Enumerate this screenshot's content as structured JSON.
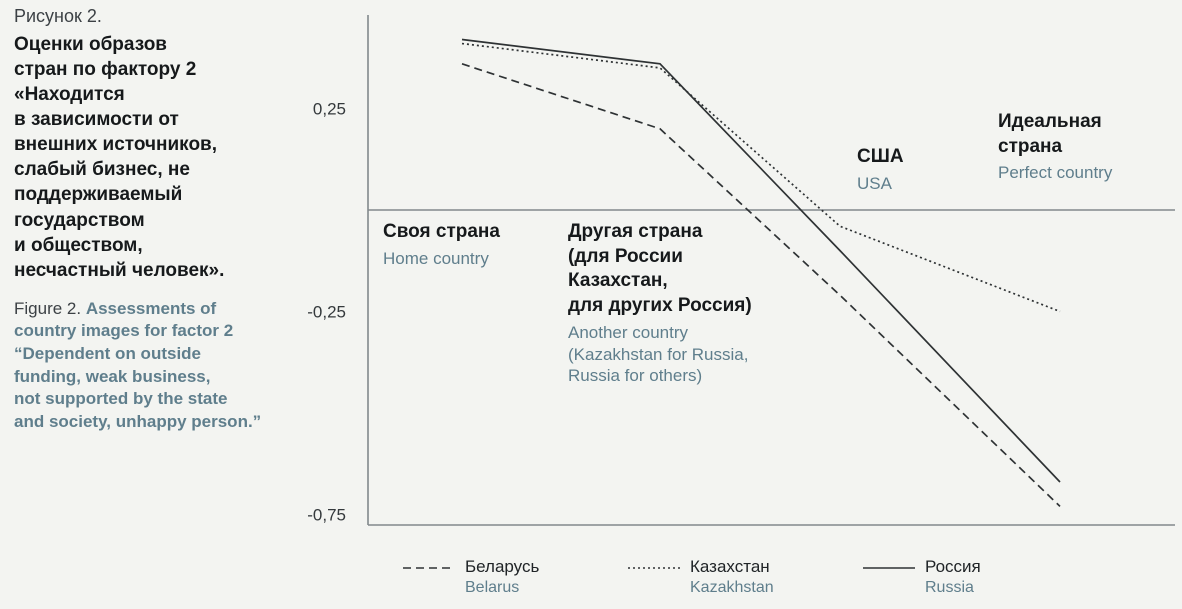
{
  "page": {
    "background": "#f3f4f1",
    "accent_teal": "#5f7e8c",
    "text_dark": "#16191b",
    "line_color": "#2e3234",
    "axis_color": "#82888c",
    "tick_color": "#34393c"
  },
  "caption": {
    "ru_label": "Рисунок 2.",
    "ru_title": "Оценки образов\nстран по фактору 2\n«Находится\nв зависимости от\nвнешних источников,\nслабый бизнес, не\nподдерживаемый\nгосударством\nи обществом,\nнесчастный человек».",
    "en_label": "Figure 2.",
    "en_title": "Assessments of\ncountry images for factor 2\n“Dependent on outside\nfunding, weak business,\nnot supported by the state\nand society, unhappy person.”"
  },
  "chart_data": {
    "type": "line",
    "title": "Оценки образов стран по фактору 2 / Assessments of country images for factor 2",
    "categories": [
      "Своя страна (Home country)",
      "Другая страна (для России Казахстан, для других Россия) / Another country (Kazakhstan for Russia, Russia for others)",
      "США (USA)",
      "Идеальная страна (Perfect country)"
    ],
    "category_labels": [
      {
        "ru": "Своя страна",
        "en": "Home country"
      },
      {
        "ru": "Другая страна\n(для России\nКазахстан,\nдля других Россия)",
        "en": "Another country\n(Kazakhstan for Russia,\nRussia for others)"
      },
      {
        "ru": "США",
        "en": "USA"
      },
      {
        "ru": "Идеальная\nстрана",
        "en": "Perfect country"
      }
    ],
    "series": [
      {
        "name_ru": "Беларусь",
        "name_en": "Belarus",
        "style": "dashed",
        "values": [
          0.36,
          0.2,
          -0.21,
          -0.73
        ]
      },
      {
        "name_ru": "Казахстан",
        "name_en": "Kazakhstan",
        "style": "dotted",
        "values": [
          0.41,
          0.35,
          -0.04,
          -0.25
        ]
      },
      {
        "name_ru": "Россия",
        "name_en": "Russia",
        "style": "solid",
        "values": [
          0.42,
          0.36,
          -0.1,
          -0.67
        ]
      }
    ],
    "yticks": [
      {
        "value": 0.25,
        "label": "0,25"
      },
      {
        "value": -0.25,
        "label": "-0,25"
      },
      {
        "value": -0.75,
        "label": "-0,75"
      }
    ],
    "ylim": [
      -0.78,
      0.48
    ],
    "grid": false,
    "legend_position": "bottom"
  }
}
